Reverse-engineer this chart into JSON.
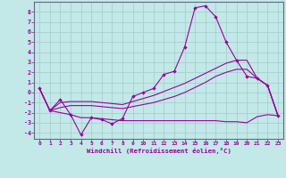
{
  "xlabel": "Windchill (Refroidissement éolien,°C)",
  "background_color": "#c2e8e8",
  "grid_color": "#a8d0d0",
  "line_color": "#990099",
  "xlim": [
    -0.5,
    23.5
  ],
  "ylim": [
    -4.6,
    9.0
  ],
  "xticks": [
    0,
    1,
    2,
    3,
    4,
    5,
    6,
    7,
    8,
    9,
    10,
    11,
    12,
    13,
    14,
    15,
    16,
    17,
    18,
    19,
    20,
    21,
    22,
    23
  ],
  "yticks": [
    -4,
    -3,
    -2,
    -1,
    0,
    1,
    2,
    3,
    4,
    5,
    6,
    7,
    8
  ],
  "s1_x": [
    0,
    1,
    2,
    3,
    4,
    5,
    6,
    7,
    8,
    9,
    10,
    11,
    12,
    13,
    14,
    15,
    16,
    17,
    18,
    19,
    20,
    21,
    22,
    23
  ],
  "s1_y": [
    0.4,
    -1.8,
    -0.7,
    -2.2,
    -4.2,
    -2.5,
    -2.7,
    -3.1,
    -2.6,
    -0.4,
    0.0,
    0.4,
    1.8,
    2.1,
    4.5,
    8.4,
    8.6,
    7.5,
    5.0,
    3.2,
    1.6,
    1.4,
    0.7,
    -2.3
  ],
  "s2_x": [
    0,
    1,
    2,
    3,
    4,
    5,
    6,
    7,
    8,
    9,
    10,
    11,
    12,
    13,
    14,
    15,
    16,
    17,
    18,
    19,
    20,
    21,
    22,
    23
  ],
  "s2_y": [
    0.4,
    -1.8,
    -1.0,
    -0.9,
    -0.9,
    -0.9,
    -1.0,
    -1.1,
    -1.2,
    -0.9,
    -0.6,
    -0.3,
    0.1,
    0.5,
    0.9,
    1.4,
    1.9,
    2.4,
    2.9,
    3.2,
    3.2,
    1.4,
    0.7,
    -2.3
  ],
  "s3_x": [
    0,
    1,
    2,
    3,
    4,
    5,
    6,
    7,
    8,
    9,
    10,
    11,
    12,
    13,
    14,
    15,
    16,
    17,
    18,
    19,
    20,
    21,
    22,
    23
  ],
  "s3_y": [
    0.4,
    -1.8,
    -1.5,
    -1.3,
    -1.3,
    -1.3,
    -1.4,
    -1.5,
    -1.6,
    -1.4,
    -1.2,
    -1.0,
    -0.7,
    -0.4,
    0.0,
    0.5,
    1.0,
    1.6,
    2.0,
    2.3,
    2.3,
    1.4,
    0.7,
    -2.3
  ],
  "s4_x": [
    0,
    1,
    2,
    3,
    4,
    5,
    6,
    7,
    8,
    9,
    10,
    11,
    12,
    13,
    14,
    15,
    16,
    17,
    18,
    19,
    20,
    21,
    22,
    23
  ],
  "s4_y": [
    0.4,
    -1.8,
    -2.0,
    -2.2,
    -2.5,
    -2.5,
    -2.6,
    -2.7,
    -2.8,
    -2.8,
    -2.8,
    -2.8,
    -2.8,
    -2.8,
    -2.8,
    -2.8,
    -2.8,
    -2.8,
    -2.9,
    -2.9,
    -3.0,
    -2.4,
    -2.2,
    -2.3
  ]
}
